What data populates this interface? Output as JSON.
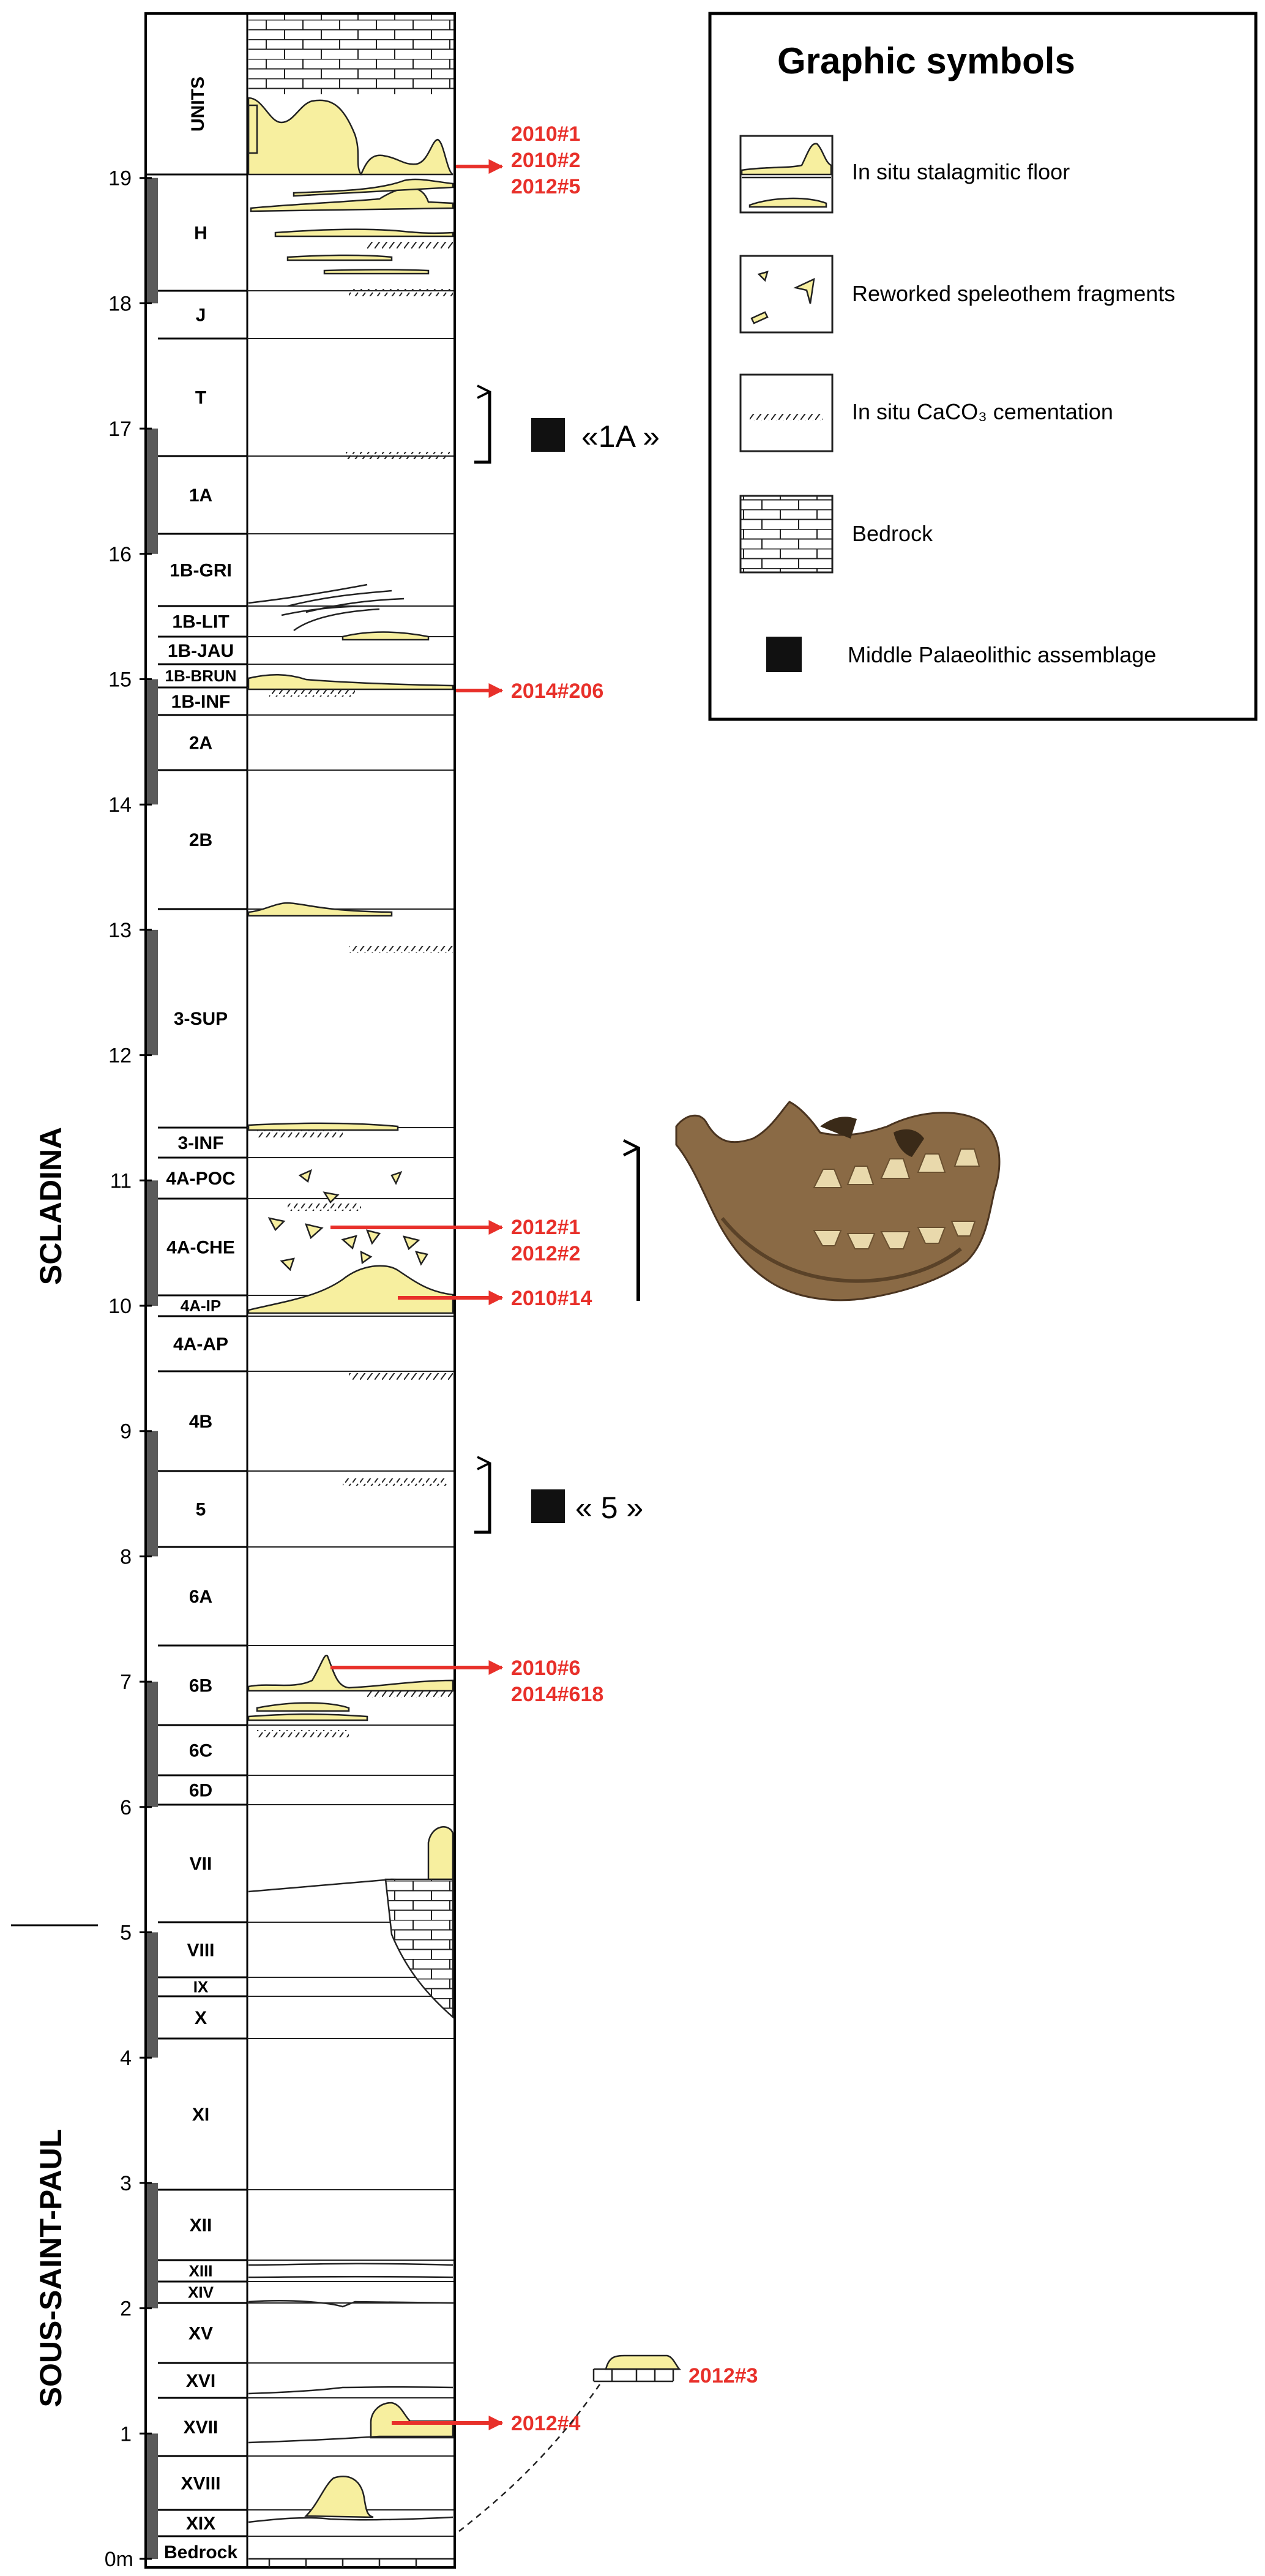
{
  "depth_axis": {
    "ticks": [
      "0m",
      "1",
      "2",
      "3",
      "4",
      "5",
      "6",
      "7",
      "8",
      "9",
      "10",
      "11",
      "12",
      "13",
      "14",
      "15",
      "16",
      "17",
      "18",
      "19"
    ]
  },
  "groups": {
    "upper": "SCLADINA",
    "lower": "SOUS-SAINT-PAUL"
  },
  "units_header": "UNITS",
  "units": [
    {
      "label": "H"
    },
    {
      "label": "J"
    },
    {
      "label": "T"
    },
    {
      "label": "1A"
    },
    {
      "label": "1B-GRI"
    },
    {
      "label": "1B-LIT"
    },
    {
      "label": "1B-JAU"
    },
    {
      "label": "1B-BRUN"
    },
    {
      "label": "1B-INF"
    },
    {
      "label": "2A"
    },
    {
      "label": "2B"
    },
    {
      "label": "3-SUP"
    },
    {
      "label": "3-INF"
    },
    {
      "label": "4A-POC"
    },
    {
      "label": "4A-CHE"
    },
    {
      "label": "4A-IP"
    },
    {
      "label": "4A-AP"
    },
    {
      "label": "4B"
    },
    {
      "label": "5"
    },
    {
      "label": "6A"
    },
    {
      "label": "6B"
    },
    {
      "label": "6C"
    },
    {
      "label": "6D"
    },
    {
      "label": "VII"
    },
    {
      "label": "VIII"
    },
    {
      "label": "IX"
    },
    {
      "label": "X"
    },
    {
      "label": "XI"
    },
    {
      "label": "XII"
    },
    {
      "label": "XIII"
    },
    {
      "label": "XIV"
    },
    {
      "label": "XV"
    },
    {
      "label": "XVI"
    },
    {
      "label": "XVII"
    },
    {
      "label": "XVIII"
    },
    {
      "label": "XIX"
    },
    {
      "label": "Bedrock"
    }
  ],
  "samples": [
    {
      "lines": [
        "2010#1",
        "2010#2",
        "2012#5"
      ]
    },
    {
      "lines": [
        "2014#206"
      ]
    },
    {
      "lines": [
        "2012#1",
        "2012#2"
      ]
    },
    {
      "lines": [
        "2010#14"
      ]
    },
    {
      "lines": [
        "2010#6",
        "2014#618"
      ]
    },
    {
      "lines": [
        "2012#4"
      ]
    },
    {
      "lines": [
        "2012#3"
      ]
    }
  ],
  "assemblages": [
    {
      "label": "«1A »"
    },
    {
      "label": "« 5 »"
    }
  ],
  "legend": {
    "title": "Graphic symbols",
    "items": [
      {
        "label": "In situ stalagmitic floor"
      },
      {
        "label": "Reworked speleothem fragments"
      },
      {
        "label": "In situ CaCO₃ cementation"
      },
      {
        "label": "Bedrock"
      },
      {
        "label": "Middle Palaeolithic assemblage"
      }
    ]
  },
  "colors": {
    "sample_red": "#e8302a",
    "speleothem_yellow": "#f7ef9f",
    "bar_gray": "#5a5a5a"
  }
}
